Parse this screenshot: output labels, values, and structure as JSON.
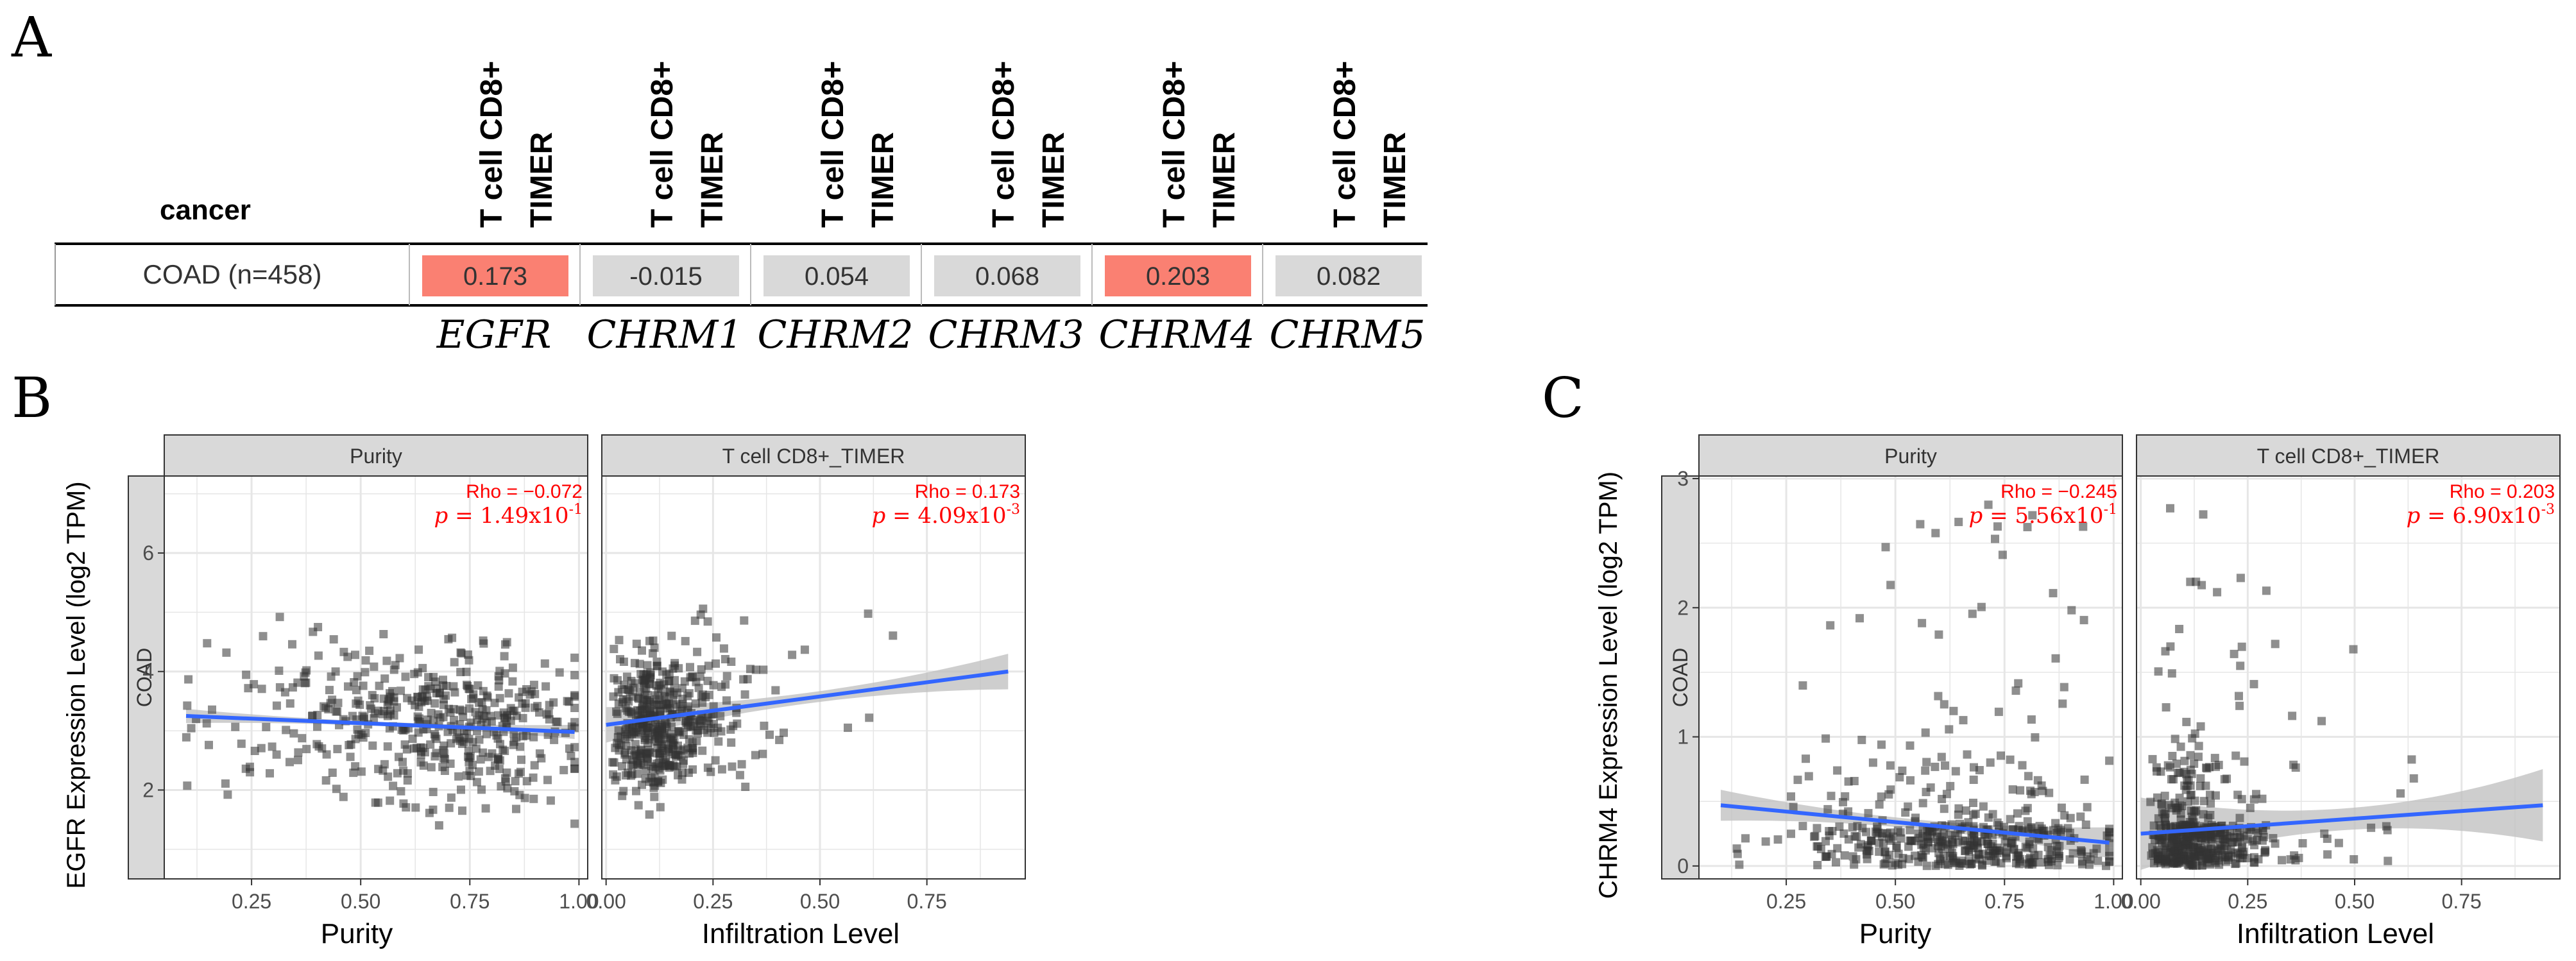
{
  "panel_labels": {
    "a": "A",
    "b": "B",
    "c": "C"
  },
  "colors": {
    "positive_cell": "#fa8072",
    "neutral_cell": "#d9d9d9",
    "strip_fill": "#d9d9d9",
    "regression_line": "#3366ff",
    "confidence_band": "#bdbdbd",
    "stat_text": "#ff0000",
    "point": "#333333"
  },
  "chart_data": [
    {
      "panel": "A",
      "type": "table",
      "row_header": "cancer",
      "column_header_line1": "T cell CD8+",
      "column_header_line2": "TIMER",
      "row_label": "COAD (n=458)",
      "genes": [
        "EGFR",
        "CHRM1",
        "CHRM2",
        "CHRM3",
        "CHRM4",
        "CHRM5"
      ],
      "values": [
        "0.173",
        "-0.015",
        "0.054",
        "0.068",
        "0.203",
        "0.082"
      ],
      "significant": [
        true,
        false,
        false,
        false,
        true,
        false
      ]
    },
    {
      "panel": "B",
      "type": "scatter",
      "gene": "EGFR",
      "ylabel": "EGFR Expression Level (log2 TPM)",
      "row_strip": "COAD",
      "ylim": [
        0.5,
        7.3
      ],
      "yticks": [
        2,
        4,
        6
      ],
      "subplots": [
        {
          "strip": "Purity",
          "xlabel": "Purity",
          "xlim": [
            0.05,
            1.02
          ],
          "xticks": [
            "0.25",
            "0.50",
            "0.75",
            "1.00"
          ],
          "xtick_values": [
            0.25,
            0.5,
            0.75,
            1.0
          ],
          "rho_text": "Rho = −0.072",
          "p_prefix": "p",
          "p_value": " = 1.49x10",
          "p_exponent": "-1",
          "fit": {
            "x0": 0.1,
            "y0": 3.25,
            "x1": 0.99,
            "y1": 2.98,
            "band_halfwidth": 0.12
          },
          "points": {
            "n": 458,
            "seed": 11,
            "x_range": [
              0.1,
              0.99
            ],
            "x_center": 0.68,
            "y_mean": 3.1,
            "y_sd": 0.65,
            "slope": -0.3
          }
        },
        {
          "strip": "T cell CD8+_TIMER",
          "xlabel": "Infiltration Level",
          "xlim": [
            -0.01,
            0.98
          ],
          "xticks": [
            "0.00",
            "0.25",
            "0.50",
            "0.75"
          ],
          "xtick_values": [
            0.0,
            0.25,
            0.5,
            0.75
          ],
          "rho_text": "Rho = 0.173",
          "p_prefix": "p",
          "p_value": " = 4.09x10",
          "p_exponent": "-3",
          "fit": {
            "x0": 0.0,
            "y0": 3.1,
            "x1": 0.94,
            "y1": 4.0,
            "band_halfwidth": 0.3
          },
          "points": {
            "n": 458,
            "seed": 23,
            "x_range": [
              0.0,
              0.94
            ],
            "x_center": 0.15,
            "y_mean": 3.2,
            "y_sd": 0.65,
            "slope": 1.0
          }
        }
      ]
    },
    {
      "panel": "C",
      "type": "scatter",
      "gene": "CHRM4",
      "ylabel": "CHRM4 Expression Level (log2 TPM)",
      "row_strip": "COAD",
      "ylim": [
        -0.1,
        3.02
      ],
      "yticks": [
        0,
        1,
        2,
        3
      ],
      "subplots": [
        {
          "strip": "Purity",
          "xlabel": "Purity",
          "xlim": [
            0.05,
            1.02
          ],
          "xticks": [
            "0.25",
            "0.50",
            "0.75",
            "1.00"
          ],
          "xtick_values": [
            0.25,
            0.5,
            0.75,
            1.0
          ],
          "rho_text": "Rho = −0.245",
          "p_prefix": "p",
          "p_value": " = 5.56x10",
          "p_exponent": "-1",
          "fit": {
            "x0": 0.1,
            "y0": 0.47,
            "x1": 0.99,
            "y1": 0.18,
            "band_halfwidth": 0.12
          },
          "points": {
            "n": 458,
            "seed": 37,
            "x_range": [
              0.1,
              0.99
            ],
            "x_center": 0.68,
            "y_mean": 0.0,
            "y_sd": 0.0,
            "slope": 0.0
          }
        },
        {
          "strip": "T cell CD8+_TIMER",
          "xlabel": "Infiltration Level",
          "xlim": [
            -0.01,
            0.98
          ],
          "xticks": [
            "0.00",
            "0.25",
            "0.50",
            "0.75"
          ],
          "xtick_values": [
            0.0,
            0.25,
            0.5,
            0.75
          ],
          "rho_text": "Rho = 0.203",
          "p_prefix": "p",
          "p_value": " = 6.90x10",
          "p_exponent": "-3",
          "fit": {
            "x0": 0.0,
            "y0": 0.25,
            "x1": 0.94,
            "y1": 0.47,
            "band_halfwidth": 0.28
          },
          "points": {
            "n": 458,
            "seed": 53,
            "x_range": [
              0.0,
              0.94
            ],
            "x_center": 0.15,
            "y_mean": 0.0,
            "y_sd": 0.0,
            "slope": 0.0
          }
        }
      ]
    }
  ]
}
